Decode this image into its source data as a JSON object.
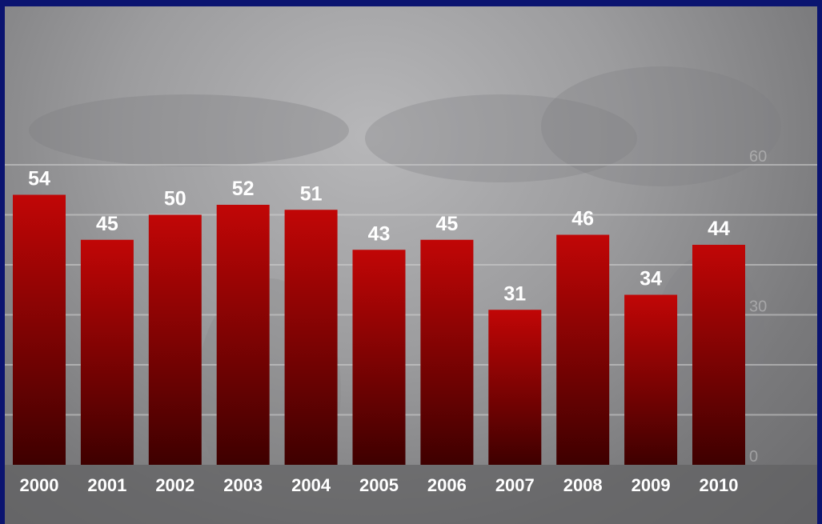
{
  "chart_data": {
    "type": "bar",
    "title": "",
    "xlabel": "",
    "ylabel": "",
    "categories": [
      "2000",
      "2001",
      "2002",
      "2003",
      "2004",
      "2005",
      "2006",
      "2007",
      "2008",
      "2009",
      "2010"
    ],
    "values": [
      54,
      45,
      50,
      52,
      51,
      43,
      45,
      31,
      46,
      34,
      44
    ],
    "ylim": [
      0,
      60
    ],
    "y_ticks": [
      "0",
      "30",
      "60"
    ],
    "grid": true,
    "data_labels": true,
    "colors": {
      "bar_top": "#c10606",
      "bar_bottom": "#3e0000",
      "background": "#9a9a9c",
      "border": "#0b1470",
      "axis_band": "#5f5f61"
    }
  }
}
